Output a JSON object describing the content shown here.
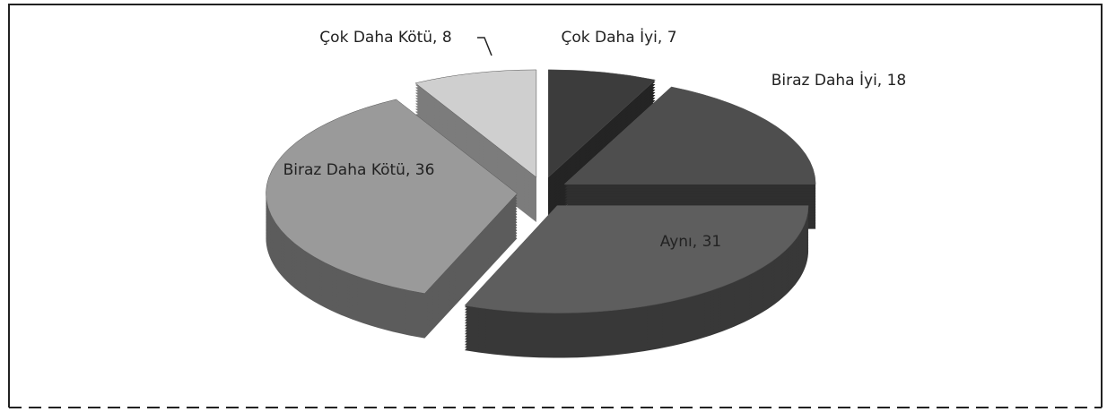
{
  "chart_data": {
    "type": "pie3d",
    "values": [
      7,
      18,
      31,
      36,
      8
    ],
    "value_labels": [
      "Çok Daha İyi, 7",
      "Biraz Daha İyi, 18",
      "Aynı, 31",
      "Biraz Daha Kötü, 36",
      "Çok Daha Kötü, 8"
    ],
    "colors": [
      "#3c3c3c",
      "#4e4e4e",
      "#5e5e5e",
      "#9a9a9a",
      "#cfcfcf"
    ]
  }
}
